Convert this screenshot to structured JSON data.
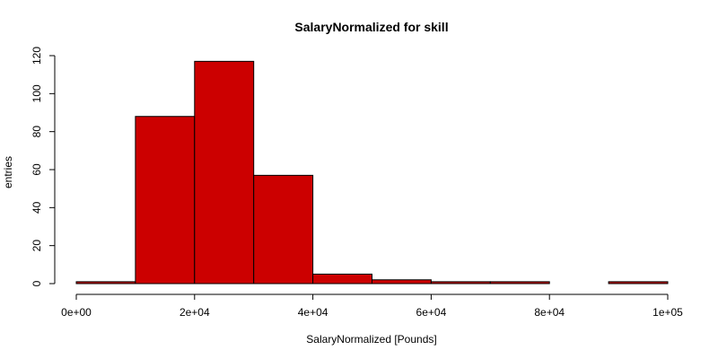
{
  "chart_data": {
    "type": "bar",
    "title": "SalaryNormalized for skill",
    "xlabel": "SalaryNormalized [Pounds]",
    "ylabel": "entries",
    "bin_edges": [
      0,
      10000,
      20000,
      30000,
      40000,
      50000,
      60000,
      70000,
      80000,
      90000,
      100000
    ],
    "values": [
      1,
      88,
      117,
      57,
      5,
      2,
      1,
      1,
      0,
      1
    ],
    "xlim": [
      0,
      100000
    ],
    "ylim": [
      0,
      120
    ],
    "x_ticks": [
      0,
      20000,
      40000,
      60000,
      80000,
      100000
    ],
    "x_tick_labels": [
      "0e+00",
      "2e+04",
      "4e+04",
      "6e+04",
      "8e+04",
      "1e+05"
    ],
    "y_ticks": [
      0,
      20,
      40,
      60,
      80,
      100,
      120
    ],
    "y_tick_labels": [
      "0",
      "20",
      "40",
      "60",
      "80",
      "100",
      "120"
    ],
    "bar_color": "#cc0000",
    "grid": false,
    "legend": "none"
  }
}
